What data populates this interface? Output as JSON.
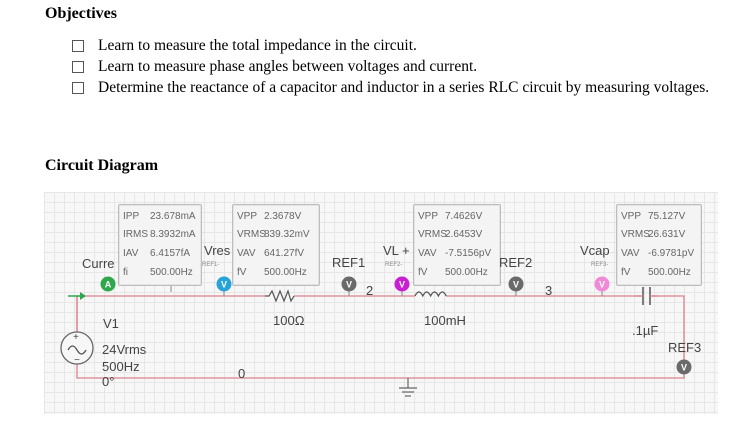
{
  "objectives": {
    "title": "Objectives",
    "items": [
      "Learn to measure the total impedance in the circuit.",
      "Learn to measure phase angles between voltages and current.",
      "Determine the reactance of a capacitor and inductor in a series RLC circuit by measuring voltages."
    ]
  },
  "circuit": {
    "title": "Circuit Diagram",
    "source": {
      "name": "V1",
      "voltage": "24Vrms",
      "frequency": "500Hz",
      "phase": "0°"
    },
    "resistor": "100Ω",
    "inductor": "100mH",
    "capacitor": ".1µF",
    "ground_node": "0",
    "node_2": "2",
    "node_3": "3",
    "probes": {
      "current": {
        "name": "Curre",
        "icon_letter": "A",
        "rows": [
          {
            "label": "IPP",
            "value": "23.678mA"
          },
          {
            "label": "IRMS",
            "value": "8.3932mA"
          },
          {
            "label": "IAV",
            "value": "6.4157fA"
          },
          {
            "label": "fi",
            "value": "500.00Hz"
          }
        ]
      },
      "vres": {
        "name": "Vres",
        "ref": "REF1-",
        "icon_letter": "V",
        "rows": [
          {
            "label": "VPP",
            "value": "2.3678V"
          },
          {
            "label": "VRMS",
            "value": "839.32mV"
          },
          {
            "label": "VAV",
            "value": "641.27fV"
          },
          {
            "label": "fV",
            "value": "500.00Hz"
          }
        ]
      },
      "ref1": {
        "name": "REF1",
        "icon_letter": "V"
      },
      "vl": {
        "name": "VL +",
        "ref": "REF2-",
        "icon_letter": "V",
        "rows": [
          {
            "label": "VPP",
            "value": "7.4626V"
          },
          {
            "label": "VRMS",
            "value": "2.6453V"
          },
          {
            "label": "VAV",
            "value": "-7.5156pV"
          },
          {
            "label": "fV",
            "value": "500.00Hz"
          }
        ]
      },
      "ref2": {
        "name": "REF2",
        "icon_letter": "V"
      },
      "vcap": {
        "name": "Vcap",
        "ref": "REF3-",
        "icon_letter": "V",
        "rows": [
          {
            "label": "VPP",
            "value": "75.127V"
          },
          {
            "label": "VRMS",
            "value": "26.631V"
          },
          {
            "label": "VAV",
            "value": "-6.9781pV"
          },
          {
            "label": "fV",
            "value": "500.00Hz"
          }
        ]
      },
      "ref3": {
        "name": "REF3",
        "icon_letter": "V"
      }
    },
    "colors": {
      "wire": "#d9828c",
      "current_probe": "#2ea84a",
      "vres_probe": "#27a3d9",
      "vl_probe": "#c81ed4",
      "vcap_probe": "#f08ad6",
      "ref_probe": "#6a6a6a"
    }
  }
}
